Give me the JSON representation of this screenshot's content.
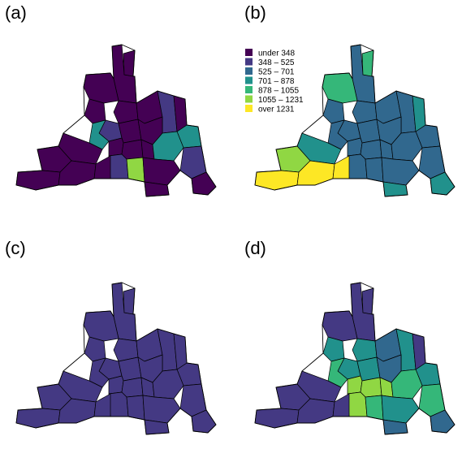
{
  "panels": [
    {
      "id": "a",
      "label": "(a)"
    },
    {
      "id": "b",
      "label": "(b)"
    },
    {
      "id": "c",
      "label": "(c)"
    },
    {
      "id": "d",
      "label": "(d)"
    }
  ],
  "legend": {
    "items": [
      {
        "label": "under 348",
        "color": "#440154"
      },
      {
        "label": "348 – 525",
        "color": "#443983"
      },
      {
        "label": "525 – 701",
        "color": "#31688e"
      },
      {
        "label": "701 – 878",
        "color": "#21918c"
      },
      {
        "label": "878 – 1055",
        "color": "#35b779"
      },
      {
        "label": "1055 – 1231",
        "color": "#90d743"
      },
      {
        "label": "over 1231",
        "color": "#fde725"
      }
    ]
  },
  "panel_classes": {
    "a": [
      0,
      0,
      0,
      0,
      0,
      0,
      1,
      1,
      0,
      0,
      3,
      3,
      0,
      0,
      0,
      3,
      1,
      1,
      5,
      0,
      0,
      0,
      0,
      0,
      0,
      0,
      0,
      0
    ],
    "b": [
      2,
      4,
      4,
      2,
      2,
      2,
      2,
      2,
      2,
      2,
      2,
      2,
      2,
      2,
      2,
      2,
      2,
      2,
      2,
      2,
      3,
      3,
      3,
      5,
      6,
      6,
      6,
      3
    ],
    "c": [
      1,
      1,
      1,
      1,
      1,
      1,
      1,
      1,
      1,
      1,
      1,
      1,
      1,
      1,
      1,
      1,
      1,
      1,
      1,
      1,
      1,
      1,
      1,
      1,
      1,
      1,
      1,
      1
    ],
    "d": [
      1,
      1,
      1,
      3,
      3,
      2,
      3,
      3,
      3,
      2,
      3,
      4,
      5,
      5,
      5,
      4,
      4,
      5,
      4,
      3,
      2,
      2,
      1,
      1,
      1,
      1,
      1,
      1
    ]
  }
}
